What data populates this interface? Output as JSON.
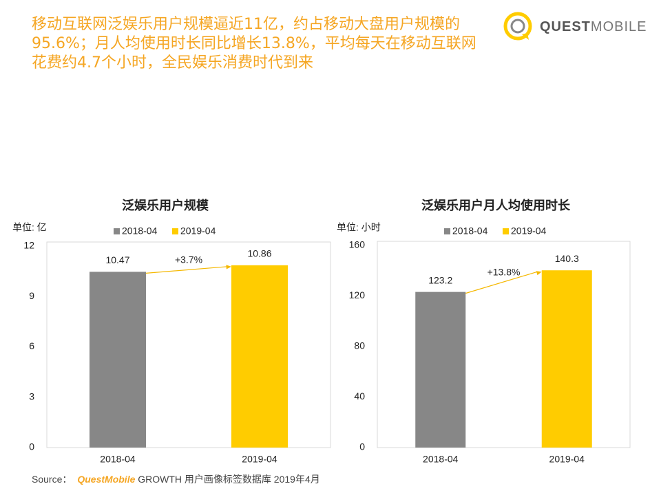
{
  "headline": [
    "移动互联网泛娱乐用户规模逼近11亿，约占移动大盘用户规模的",
    "95.6%；月人均使用时长同比增长13.8%，平均每天在移动互联网",
    "花费约4.7个小时，全民娱乐消费时代到来"
  ],
  "logo": {
    "bold": "QUEST",
    "light": "MOBILE"
  },
  "source": {
    "label": "Source：",
    "brand": "QuestMobile",
    "text": "GROWTH 用户画像标签数据库 2019年4月"
  },
  "chart_data": [
    {
      "type": "bar",
      "title": "泛娱乐用户规模",
      "unit": "单位: 亿",
      "categories": [
        "2018-04",
        "2019-04"
      ],
      "values": [
        10.47,
        10.86
      ],
      "colors": [
        "#878787",
        "#ffcc00"
      ],
      "ylim": [
        0,
        12
      ],
      "yticks": [
        0,
        3,
        6,
        9,
        12
      ],
      "annotation": "+3.7%",
      "grid": false
    },
    {
      "type": "bar",
      "title": "泛娱乐用户月人均使用时长",
      "unit": "单位: 小时",
      "categories": [
        "2018-04",
        "2019-04"
      ],
      "values": [
        123.2,
        140.3
      ],
      "colors": [
        "#878787",
        "#ffcc00"
      ],
      "ylim": [
        0,
        160
      ],
      "yticks": [
        0,
        40,
        80,
        120,
        160
      ],
      "annotation": "+13.8%",
      "grid": false
    }
  ]
}
